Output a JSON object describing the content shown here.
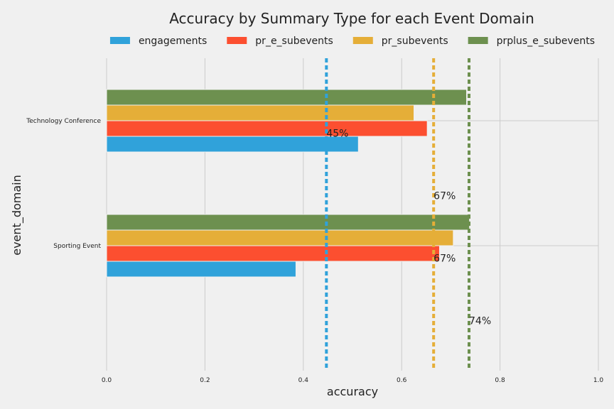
{
  "chart_data": {
    "type": "bar",
    "orientation": "horizontal",
    "title": "Accuracy by Summary Type for each Event Domain",
    "xlabel": "accuracy",
    "ylabel": "event_domain",
    "xlim": [
      0,
      1
    ],
    "xticks": [
      "0.0",
      "0.2",
      "0.4",
      "0.6",
      "0.8",
      "1.0"
    ],
    "grid": true,
    "legend_position": "top",
    "categories": [
      "Technology Conference",
      "Sporting Event"
    ],
    "series": [
      {
        "name": "engagements",
        "color": "#30a2da",
        "values": [
          0.512,
          0.385
        ]
      },
      {
        "name": "pr_e_subevents",
        "color": "#fc4f30",
        "values": [
          0.652,
          0.677
        ]
      },
      {
        "name": "pr_subevents",
        "color": "#e5ae38",
        "values": [
          0.625,
          0.705
        ]
      },
      {
        "name": "prplus_e_subevents",
        "color": "#6d904f",
        "values": [
          0.732,
          0.738
        ]
      }
    ],
    "reference_lines": [
      {
        "color": "#30a2da",
        "x": 0.447,
        "label": "45%",
        "label_x": 0.447,
        "label_y": 0.9
      },
      {
        "color": "#e5ae38",
        "x": 0.665,
        "label": "67%",
        "label_x": 0.665,
        "label_y": 0.4
      },
      {
        "color": "#e5ae38",
        "x": 0.665,
        "label": "67%",
        "label_x": 0.665,
        "label_y": -0.1
      },
      {
        "color": "#6d904f",
        "x": 0.737,
        "label": "74%",
        "label_x": 0.737,
        "label_y": -0.6
      }
    ]
  }
}
